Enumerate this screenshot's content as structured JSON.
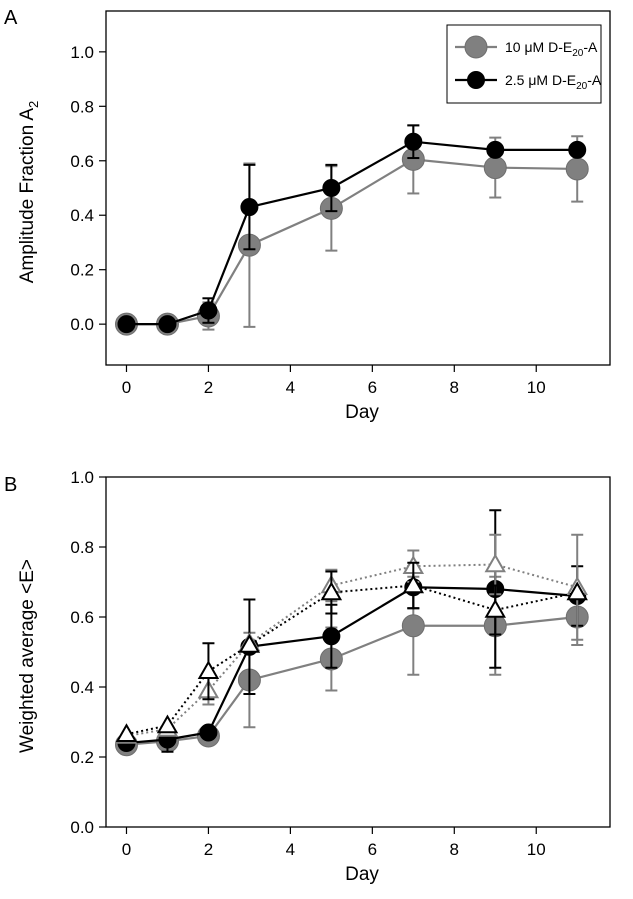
{
  "chart_data": [
    {
      "panel_label": "A",
      "type": "line",
      "xlabel": "Day",
      "ylabel": "Amplitude Fraction A",
      "ylabel_sub": "2",
      "xlim": [
        -0.5,
        11.8
      ],
      "ylim": [
        -0.15,
        1.15
      ],
      "xticks": [
        0,
        2,
        4,
        6,
        8,
        10
      ],
      "yticks": [
        0.0,
        0.2,
        0.4,
        0.6,
        0.8,
        1.0
      ],
      "ytick_labels": [
        "0.0",
        "0.2",
        "0.4",
        "0.6",
        "0.8",
        "1.0"
      ],
      "legend_position": "top-right",
      "series": [
        {
          "name": "10 μM D-E20-A",
          "legend_parts": [
            "10 μM D-E",
            "20",
            "-A"
          ],
          "color": "#808080",
          "marker": "circle-large",
          "line": "solid",
          "x": [
            0,
            1,
            2,
            3,
            5,
            7,
            9,
            11
          ],
          "y": [
            0.0,
            0.0,
            0.03,
            0.29,
            0.425,
            0.605,
            0.575,
            0.57
          ],
          "err": [
            0,
            0,
            0.05,
            0.3,
            0.155,
            0.125,
            0.11,
            0.12
          ]
        },
        {
          "name": "2.5 μM D-E20-A",
          "legend_parts": [
            "2.5 μM D-E",
            "20",
            "-A"
          ],
          "color": "#000000",
          "marker": "circle",
          "line": "solid",
          "x": [
            0,
            1,
            2,
            3,
            5,
            7,
            9,
            11
          ],
          "y": [
            0.0,
            0.0,
            0.05,
            0.43,
            0.5,
            0.67,
            0.64,
            0.64
          ],
          "err": [
            0,
            0,
            0.045,
            0.155,
            0.085,
            0.06,
            0,
            0
          ]
        }
      ]
    },
    {
      "panel_label": "B",
      "type": "line",
      "xlabel": "Day",
      "ylabel": "Weighted average <E>",
      "xlim": [
        -0.5,
        11.8
      ],
      "ylim": [
        0.0,
        1.0
      ],
      "xticks": [
        0,
        2,
        4,
        6,
        8,
        10
      ],
      "yticks": [
        0.0,
        0.2,
        0.4,
        0.6,
        0.8,
        1.0
      ],
      "ytick_labels": [
        "0.0",
        "0.2",
        "0.4",
        "0.6",
        "0.8",
        "1.0"
      ],
      "series": [
        {
          "color": "#808080",
          "marker": "circle-large",
          "line": "solid",
          "x": [
            0,
            1,
            2,
            3,
            5,
            7,
            9,
            11
          ],
          "y": [
            0.235,
            0.245,
            0.26,
            0.42,
            0.48,
            0.575,
            0.575,
            0.6
          ],
          "err": [
            0,
            0,
            0,
            0.135,
            0.09,
            0.14,
            0.14,
            0.08
          ]
        },
        {
          "color": "#000000",
          "marker": "circle",
          "line": "solid",
          "x": [
            0,
            1,
            2,
            3,
            5,
            7,
            9,
            11
          ],
          "y": [
            0.24,
            0.25,
            0.27,
            0.515,
            0.545,
            0.685,
            0.68,
            0.66
          ],
          "err": [
            0,
            0.035,
            0,
            0.135,
            0.09,
            0.06,
            0.225,
            0.085
          ]
        },
        {
          "color": "#808080",
          "marker": "triangle-open",
          "line": "dotted",
          "x": [
            0,
            1,
            2,
            3,
            5,
            7,
            9,
            11
          ],
          "y": [
            0.26,
            0.28,
            0.39,
            0.525,
            0.69,
            0.745,
            0.75,
            0.685
          ],
          "err": [
            0,
            0,
            0.04,
            0,
            0.045,
            0.045,
            0.085,
            0.15
          ]
        },
        {
          "color": "#000000",
          "marker": "triangle-open",
          "line": "dotted",
          "x": [
            0,
            1,
            2,
            3,
            5,
            7,
            9,
            11
          ],
          "y": [
            0.265,
            0.29,
            0.445,
            0.52,
            0.67,
            0.69,
            0.62,
            0.67
          ],
          "err": [
            0,
            0,
            0.08,
            0,
            0.06,
            0.065,
            0.07,
            0
          ]
        }
      ]
    }
  ]
}
